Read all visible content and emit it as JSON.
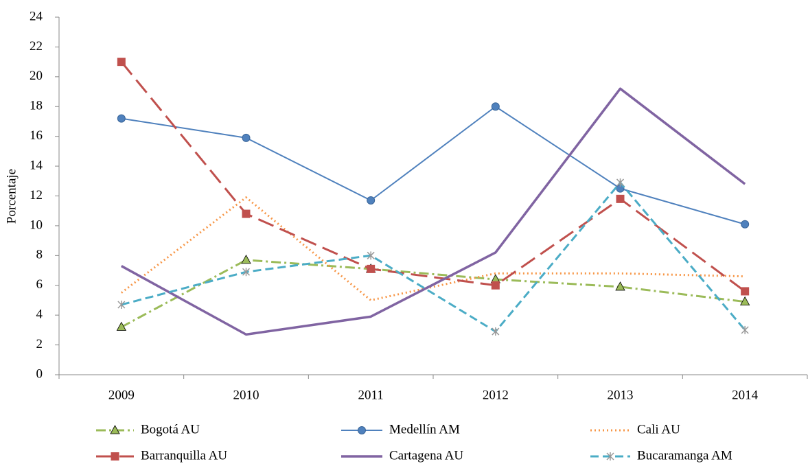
{
  "chart_data": {
    "type": "line",
    "y_label": "Porcentaje",
    "categories": [
      "2009",
      "2010",
      "2011",
      "2012",
      "2013",
      "2014"
    ],
    "series": [
      {
        "name": "Bogotá AU",
        "color": "#9bbb59",
        "dash": "14 5 3 5",
        "marker": "triangle",
        "values": [
          3.2,
          7.7,
          7.1,
          6.4,
          5.9,
          4.9
        ]
      },
      {
        "name": "Medellín AM",
        "color": "#4f81bd",
        "dash": "none",
        "marker": "circle",
        "values": [
          17.2,
          15.9,
          11.7,
          18.0,
          12.5,
          10.1
        ]
      },
      {
        "name": "Cali AU",
        "color": "#f79646",
        "dash": "2 4",
        "marker": "none",
        "values": [
          5.5,
          11.9,
          5.0,
          6.8,
          6.8,
          6.6
        ]
      },
      {
        "name": "Barranquilla AU",
        "color": "#c0504d",
        "dash": "24 10",
        "marker": "square",
        "values": [
          21.0,
          10.8,
          7.1,
          6.0,
          11.8,
          5.6
        ]
      },
      {
        "name": "Cartagena AU",
        "color": "#8064a2",
        "dash": "none",
        "marker": "none",
        "values": [
          7.3,
          2.7,
          3.9,
          8.2,
          19.2,
          12.8
        ]
      },
      {
        "name": "Bucaramanga AM",
        "color": "#4bacc6",
        "dash": "12 6",
        "marker": "star",
        "values": [
          4.7,
          6.9,
          8.0,
          2.9,
          12.9,
          3.0
        ]
      }
    ],
    "ylim": [
      0,
      24
    ],
    "yticks": [
      0,
      2,
      4,
      6,
      8,
      10,
      12,
      14,
      16,
      18,
      20,
      22,
      24
    ]
  }
}
